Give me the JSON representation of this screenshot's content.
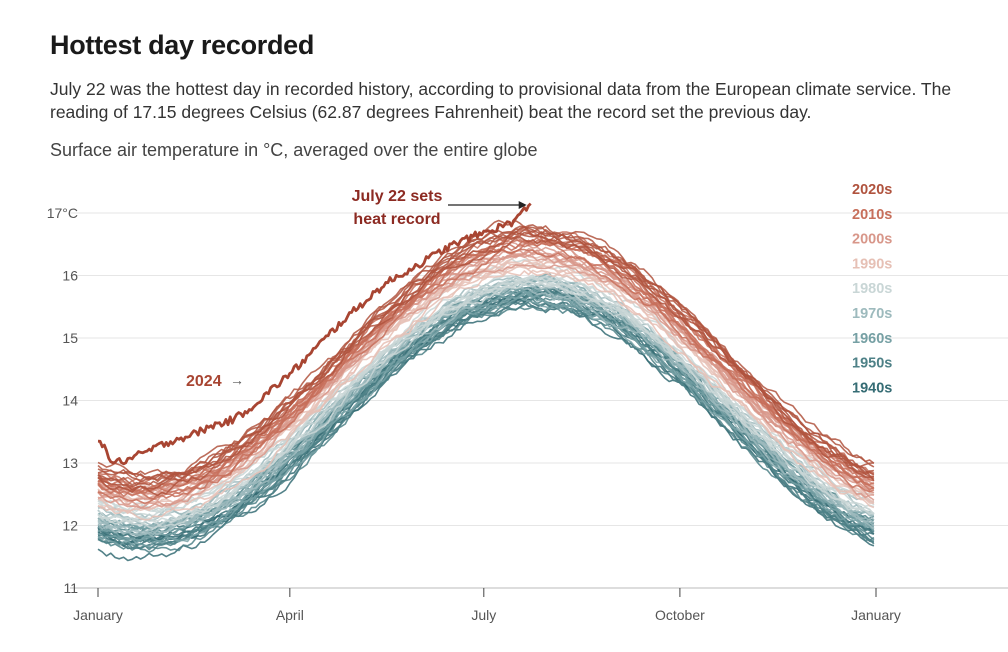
{
  "header": {
    "title": "Hottest day recorded",
    "dek": "July 22 was the hottest day in recorded history, according to provisional data from the European climate service. The reading of 17.15 degrees Celsius (62.87 degrees Fahrenheit) beat the record set the previous day.",
    "subtitle": "Surface air temperature in °C, averaged over the entire globe"
  },
  "chart_data": {
    "type": "line",
    "y_unit_label": "°C",
    "ylim": [
      11,
      17.2
    ],
    "yticks": [
      11,
      12,
      13,
      14,
      15,
      16,
      17
    ],
    "ytick_labels": [
      "11",
      "12",
      "13",
      "14",
      "15",
      "16",
      "17°C"
    ],
    "xticks": [
      {
        "label": "January",
        "day": 1
      },
      {
        "label": "April",
        "day": 91
      },
      {
        "label": "July",
        "day": 182
      },
      {
        "label": "October",
        "day": 274
      },
      {
        "label": "January",
        "day": 366
      }
    ],
    "grid": true,
    "legend": "right",
    "decades": [
      {
        "label": "2020s",
        "color": "#b0533e",
        "jan": 12.7,
        "jul": 16.65
      },
      {
        "label": "2010s",
        "color": "#c76f5b",
        "jan": 12.6,
        "jul": 16.5
      },
      {
        "label": "2000s",
        "color": "#d8978a",
        "jan": 12.5,
        "jul": 16.35
      },
      {
        "label": "1990s",
        "color": "#e6c0b5",
        "jan": 12.35,
        "jul": 16.2
      },
      {
        "label": "1980s",
        "color": "#c9d6d6",
        "jan": 12.15,
        "jul": 16.0
      },
      {
        "label": "1970s",
        "color": "#9dbabd",
        "jan": 12.0,
        "jul": 15.85
      },
      {
        "label": "1960s",
        "color": "#76a0a4",
        "jan": 11.85,
        "jul": 15.75
      },
      {
        "label": "1950s",
        "color": "#4e8187",
        "jan": 11.75,
        "jul": 15.65
      },
      {
        "label": "1940s",
        "color": "#356c74",
        "jan": 11.7,
        "jul": 15.6
      }
    ],
    "series_2024": {
      "name": "2024",
      "color": "#a84532",
      "points": [
        [
          1,
          13.4
        ],
        [
          8,
          13.0
        ],
        [
          15,
          13.05
        ],
        [
          25,
          13.2
        ],
        [
          35,
          13.35
        ],
        [
          45,
          13.45
        ],
        [
          55,
          13.6
        ],
        [
          65,
          13.7
        ],
        [
          75,
          13.95
        ],
        [
          85,
          14.25
        ],
        [
          95,
          14.55
        ],
        [
          105,
          14.9
        ],
        [
          115,
          15.25
        ],
        [
          125,
          15.55
        ],
        [
          135,
          15.85
        ],
        [
          145,
          16.05
        ],
        [
          155,
          16.25
        ],
        [
          165,
          16.45
        ],
        [
          175,
          16.6
        ],
        [
          185,
          16.72
        ],
        [
          195,
          16.85
        ],
        [
          200,
          17.0
        ],
        [
          204,
          17.15
        ]
      ]
    },
    "annotations": {
      "record_line1": "July 22 sets",
      "record_line2": "heat record",
      "record_color": "#8c2a22",
      "series_label": "2024",
      "series_label_color": "#a84532",
      "arrow": "→"
    }
  }
}
